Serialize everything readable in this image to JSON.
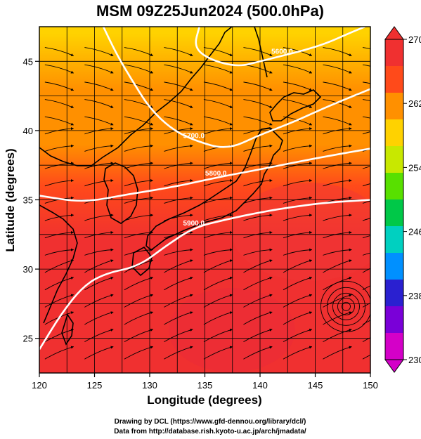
{
  "chart_data": {
    "type": "heatmap",
    "title": "MSM 09Z25Jun2024 (500.0hPa)",
    "xlabel": "Longitude (degrees)",
    "ylabel": "Latitude  (degrees)",
    "xlim": [
      120,
      150
    ],
    "ylim": [
      22.5,
      47.5
    ],
    "x_ticks": [
      "120",
      "125",
      "130",
      "135",
      "140",
      "145",
      "150"
    ],
    "y_ticks": [
      "25",
      "30",
      "35",
      "40",
      "45"
    ],
    "grid": true,
    "colorbar": {
      "min": 230,
      "max": 270,
      "ticks": [
        "230",
        "238",
        "246",
        "254",
        "262",
        "270"
      ],
      "colors": [
        "#d400c8",
        "#7a00d8",
        "#2a20d0",
        "#0090ff",
        "#00d0c0",
        "#00c848",
        "#58e000",
        "#c8e800",
        "#ffd200",
        "#ff9000",
        "#ff4a1a",
        "#f03030"
      ]
    },
    "temperature_field_K": [
      {
        "lat": 47,
        "value": 257
      },
      {
        "lat": 43,
        "value": 260
      },
      {
        "lat": 39,
        "value": 263
      },
      {
        "lat": 36,
        "value": 265
      },
      {
        "lat": 32,
        "value": 267
      },
      {
        "lat": 27,
        "value": 268
      },
      {
        "lat": 23,
        "value": 269
      }
    ],
    "contours": [
      {
        "label": "5800.0",
        "points": [
          [
            120,
            35.3
          ],
          [
            124,
            34.8
          ],
          [
            128,
            35.4
          ],
          [
            132,
            35.9
          ],
          [
            136,
            36.6
          ],
          [
            140,
            37.2
          ],
          [
            145,
            38.0
          ],
          [
            150,
            38.7
          ]
        ]
      },
      {
        "label": "5700.0",
        "points": [
          [
            125.5,
            48
          ],
          [
            127,
            45.5
          ],
          [
            128.5,
            43.5
          ],
          [
            130,
            41.6
          ],
          [
            132,
            40.1
          ],
          [
            134,
            39.3
          ],
          [
            137,
            38.6
          ],
          [
            140,
            39.7
          ],
          [
            143,
            40.6
          ],
          [
            146,
            41.7
          ],
          [
            150,
            43.0
          ]
        ]
      },
      {
        "label": "5900.0",
        "points": [
          [
            120,
            24.2
          ],
          [
            122,
            26.8
          ],
          [
            124,
            28.8
          ],
          [
            126,
            29.7
          ],
          [
            129,
            30.2
          ],
          [
            131.5,
            31.7
          ],
          [
            134,
            33.0
          ],
          [
            137,
            33.6
          ],
          [
            140,
            34.1
          ],
          [
            143,
            34.5
          ],
          [
            146,
            34.8
          ],
          [
            150,
            35.0
          ]
        ]
      },
      {
        "label": "5600.0",
        "points": [
          [
            134.5,
            47.5
          ],
          [
            134,
            46.0
          ],
          [
            135.5,
            45.1
          ],
          [
            138,
            44.6
          ],
          [
            140,
            45.0
          ],
          [
            142,
            45.4
          ],
          [
            144,
            45.8
          ],
          [
            146,
            46.3
          ],
          [
            148,
            47.0
          ],
          [
            149.5,
            47.5
          ]
        ]
      }
    ],
    "low_center": {
      "lon": 147.8,
      "lat": 27.3
    }
  },
  "credits": {
    "line1": "Drawing by DCL (https://www.gfd-dennou.org/library/dcl/)",
    "line2": "Data from http://database.rish.kyoto-u.ac.jp/arch/jmadata/"
  }
}
